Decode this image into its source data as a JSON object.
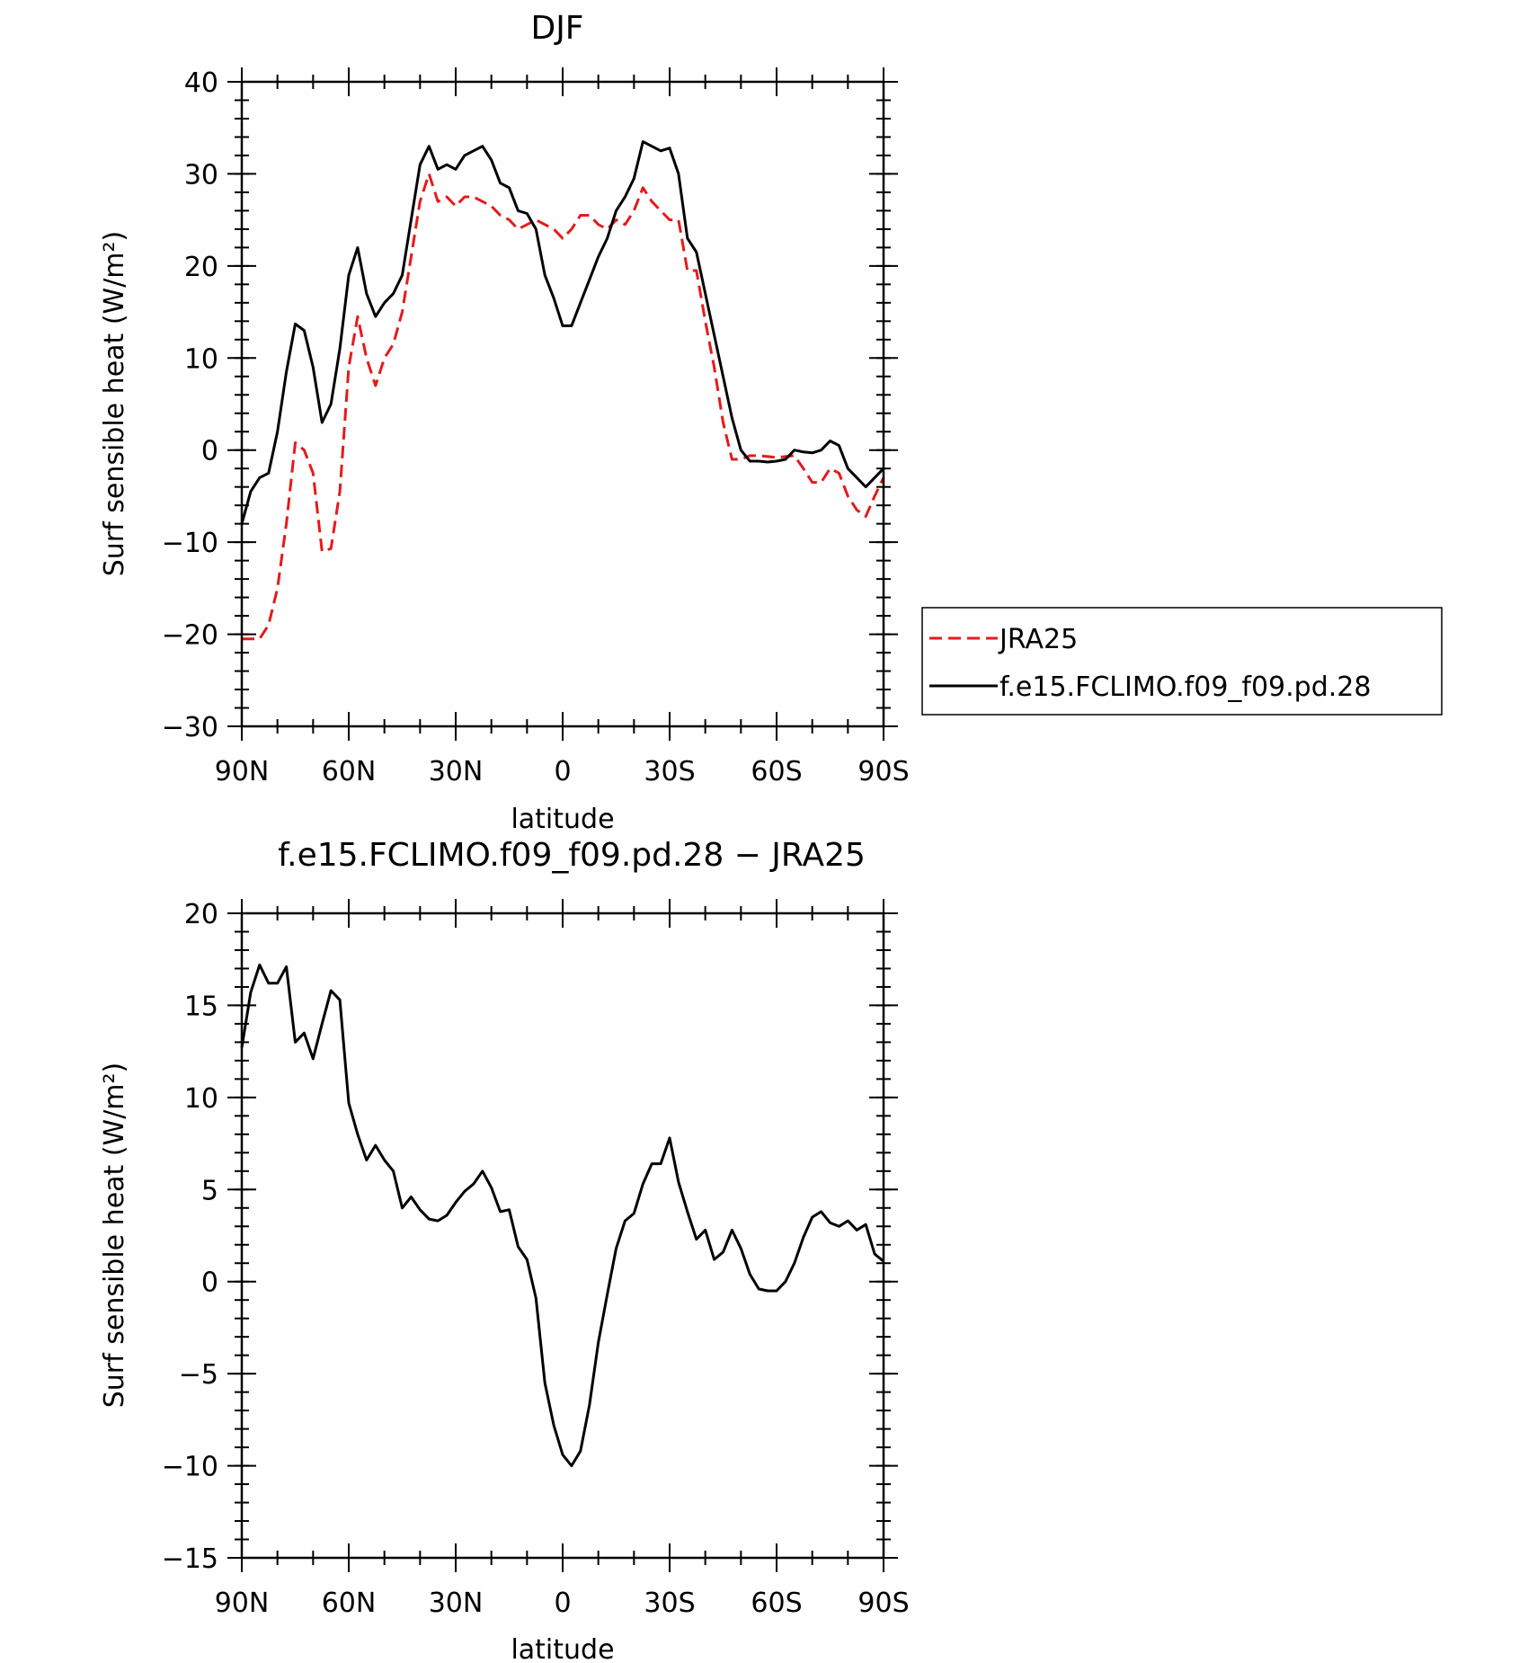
{
  "chart_data": [
    {
      "type": "line",
      "title": "DJF",
      "xlabel": "latitude",
      "ylabel": "Surf sensible heat (W/m²)",
      "xlim": [
        90,
        -90
      ],
      "ylim": [
        -30,
        40
      ],
      "xticks": [
        90,
        60,
        30,
        0,
        -30,
        -60,
        -90
      ],
      "xtick_labels": [
        "90N",
        "60N",
        "30N",
        "0",
        "30S",
        "60S",
        "90S"
      ],
      "yticks": [
        -30,
        -20,
        -10,
        0,
        10,
        20,
        30,
        40
      ],
      "ytick_labels": [
        "−30",
        "−20",
        "−10",
        "0",
        "10",
        "20",
        "30",
        "40"
      ],
      "legend_position": "right",
      "series": [
        {
          "name": "JRA25",
          "color": "#e41a1c",
          "dash": "dashed",
          "x": [
            90,
            87.5,
            85,
            82.5,
            80,
            77.5,
            75,
            72.5,
            70,
            67.5,
            65,
            62.5,
            60,
            57.5,
            55,
            52.5,
            50,
            47.5,
            45,
            42.5,
            40,
            37.5,
            35,
            32.5,
            30,
            27.5,
            25,
            22.5,
            20,
            17.5,
            15,
            12.5,
            10,
            7.5,
            5,
            2.5,
            0,
            -2.5,
            -5,
            -7.5,
            -10,
            -12.5,
            -15,
            -17.5,
            -20,
            -22.5,
            -25,
            -27.5,
            -30,
            -32.5,
            -35,
            -37.5,
            -40,
            -42.5,
            -45,
            -47.5,
            -50,
            -52.5,
            -55,
            -57.5,
            -60,
            -62.5,
            -65,
            -67.5,
            -70,
            -72.5,
            -75,
            -77.5,
            -80,
            -82.5,
            -85,
            -87.5,
            -90
          ],
          "values": [
            -20.5,
            -20.5,
            -20.5,
            -19,
            -15,
            -8,
            0.8,
            0,
            -2.5,
            -11,
            -10.7,
            -4.5,
            9,
            14.5,
            10,
            7,
            10,
            11.5,
            15,
            21,
            27,
            30,
            27,
            27.5,
            26.5,
            27.5,
            27.5,
            27,
            26.5,
            25.5,
            25,
            24,
            24.5,
            25,
            24.5,
            24,
            23,
            24,
            25.5,
            25.5,
            24.5,
            24,
            25,
            24.5,
            26,
            28.5,
            27,
            26,
            25,
            25,
            19.5,
            19.5,
            14,
            9,
            3,
            -1,
            -1,
            -0.6,
            -0.6,
            -0.7,
            -0.8,
            -0.7,
            -0.6,
            -2,
            -3.5,
            -3.5,
            -2,
            -2.5,
            -5,
            -6.5,
            -7.2,
            -5,
            -3
          ]
        },
        {
          "name": "f.e15.FCLIMO.f09_f09.pd.28",
          "color": "#000000",
          "dash": "solid",
          "x": [
            90,
            87.5,
            85,
            82.5,
            80,
            77.5,
            75,
            72.5,
            70,
            67.5,
            65,
            62.5,
            60,
            57.5,
            55,
            52.5,
            50,
            47.5,
            45,
            42.5,
            40,
            37.5,
            35,
            32.5,
            30,
            27.5,
            25,
            22.5,
            20,
            17.5,
            15,
            12.5,
            10,
            7.5,
            5,
            2.5,
            0,
            -2.5,
            -5,
            -7.5,
            -10,
            -12.5,
            -15,
            -17.5,
            -20,
            -22.5,
            -25,
            -27.5,
            -30,
            -32.5,
            -35,
            -37.5,
            -40,
            -42.5,
            -45,
            -47.5,
            -50,
            -52.5,
            -55,
            -57.5,
            -60,
            -62.5,
            -65,
            -67.5,
            -70,
            -72.5,
            -75,
            -77.5,
            -80,
            -82.5,
            -85,
            -87.5,
            -90
          ],
          "values": [
            -8,
            -4.5,
            -3,
            -2.5,
            2,
            8.5,
            13.7,
            13,
            9,
            3,
            5,
            11,
            19,
            22,
            17,
            14.5,
            16,
            17,
            19,
            25,
            31,
            33,
            30.5,
            31,
            30.5,
            32,
            32.5,
            33,
            31.5,
            29,
            28.5,
            26,
            25.7,
            24,
            19,
            16.5,
            13.5,
            13.5,
            16,
            18.5,
            21,
            23,
            26,
            27.5,
            29.5,
            33.5,
            33,
            32.5,
            32.8,
            30,
            23,
            21.5,
            17,
            12.5,
            8,
            3.5,
            0,
            -1.2,
            -1.2,
            -1.3,
            -1.2,
            -1,
            0,
            -0.2,
            -0.3,
            0,
            1,
            0.5,
            -2,
            -3,
            -4,
            -3,
            -2
          ]
        }
      ]
    },
    {
      "type": "line",
      "title": "f.e15.FCLIMO.f09_f09.pd.28 − JRA25",
      "xlabel": "latitude",
      "ylabel": "Surf sensible heat (W/m²)",
      "xlim": [
        90,
        -90
      ],
      "ylim": [
        -15,
        20
      ],
      "xticks": [
        90,
        60,
        30,
        0,
        -30,
        -60,
        -90
      ],
      "xtick_labels": [
        "90N",
        "60N",
        "30N",
        "0",
        "30S",
        "60S",
        "90S"
      ],
      "yticks": [
        -15,
        -10,
        -5,
        0,
        5,
        10,
        15,
        20
      ],
      "ytick_labels": [
        "−15",
        "−10",
        "−5",
        "0",
        "5",
        "10",
        "15",
        "20"
      ],
      "series": [
        {
          "color": "#000000",
          "dash": "solid",
          "x": [
            90,
            87.5,
            85,
            82.5,
            80,
            77.5,
            75,
            72.5,
            70,
            67.5,
            65,
            62.5,
            60,
            57.5,
            55,
            52.5,
            50,
            47.5,
            45,
            42.5,
            40,
            37.5,
            35,
            32.5,
            30,
            27.5,
            25,
            22.5,
            20,
            17.5,
            15,
            12.5,
            10,
            7.5,
            5,
            2.5,
            0,
            -2.5,
            -5,
            -7.5,
            -10,
            -12.5,
            -15,
            -17.5,
            -20,
            -22.5,
            -25,
            -27.5,
            -30,
            -32.5,
            -35,
            -37.5,
            -40,
            -42.5,
            -45,
            -47.5,
            -50,
            -52.5,
            -55,
            -57.5,
            -60,
            -62.5,
            -65,
            -67.5,
            -70,
            -72.5,
            -75,
            -77.5,
            -80,
            -82.5,
            -85,
            -87.5,
            -90
          ],
          "values": [
            12.7,
            15.7,
            17.2,
            16.2,
            16.2,
            17.1,
            13,
            13.5,
            12.1,
            14,
            15.8,
            15.3,
            9.7,
            8,
            6.6,
            7.4,
            6.6,
            6,
            4,
            4.6,
            3.9,
            3.4,
            3.3,
            3.6,
            4.3,
            4.9,
            5.3,
            6,
            5.1,
            3.8,
            3.9,
            1.9,
            1.2,
            -0.9,
            -5.5,
            -7.8,
            -9.4,
            -10,
            -9.2,
            -6.7,
            -3.3,
            -0.7,
            1.8,
            3.3,
            3.7,
            5.3,
            6.4,
            6.4,
            7.8,
            5.4,
            3.8,
            2.3,
            2.8,
            1.2,
            1.6,
            2.8,
            1.8,
            0.4,
            -0.4,
            -0.5,
            -0.5,
            0,
            1,
            2.4,
            3.5,
            3.8,
            3.2,
            3,
            3.3,
            2.8,
            3.1,
            1.5,
            1.1
          ]
        }
      ]
    }
  ]
}
